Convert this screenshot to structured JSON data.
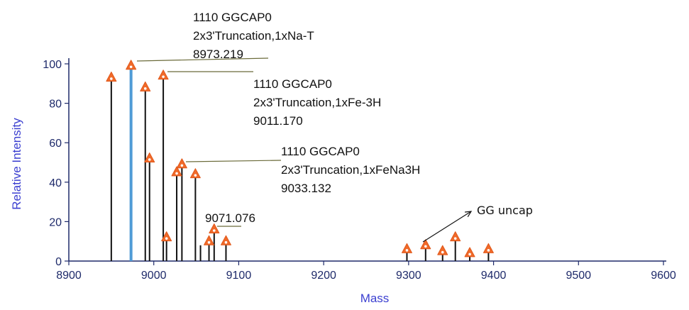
{
  "chart_data": {
    "type": "bar",
    "title": "",
    "xlabel": "Mass",
    "ylabel": "Relative Intensity",
    "xlim": [
      8900,
      9600
    ],
    "ylim": [
      0,
      100
    ],
    "x_ticks": [
      "8900",
      "9000",
      "9100",
      "9200",
      "9300",
      "9400",
      "9500",
      "9600"
    ],
    "y_ticks": [
      "0",
      "20",
      "40",
      "60",
      "80",
      "100"
    ],
    "peaks": [
      {
        "mass": 8950,
        "intensity": 93,
        "marker": true
      },
      {
        "mass": 8973.219,
        "intensity": 99,
        "marker": true,
        "highlight": true
      },
      {
        "mass": 8990,
        "intensity": 88,
        "marker": true
      },
      {
        "mass": 8995,
        "intensity": 52,
        "marker": true
      },
      {
        "mass": 9011.17,
        "intensity": 94,
        "marker": true
      },
      {
        "mass": 9015,
        "intensity": 12,
        "marker": true
      },
      {
        "mass": 9027,
        "intensity": 45,
        "marker": true
      },
      {
        "mass": 9033.132,
        "intensity": 49,
        "marker": true
      },
      {
        "mass": 9049,
        "intensity": 44,
        "marker": true
      },
      {
        "mass": 9055,
        "intensity": 8,
        "marker": false
      },
      {
        "mass": 9065,
        "intensity": 10,
        "marker": true
      },
      {
        "mass": 9071.076,
        "intensity": 16,
        "marker": true
      },
      {
        "mass": 9085,
        "intensity": 10,
        "marker": true
      },
      {
        "mass": 9298,
        "intensity": 6,
        "marker": true
      },
      {
        "mass": 9320,
        "intensity": 8,
        "marker": true
      },
      {
        "mass": 9340,
        "intensity": 5,
        "marker": true
      },
      {
        "mass": 9355,
        "intensity": 12,
        "marker": true
      },
      {
        "mass": 9372,
        "intensity": 4,
        "marker": true
      },
      {
        "mass": 9394,
        "intensity": 6,
        "marker": true
      }
    ],
    "annotations": [
      {
        "lines": [
          "1110 GGCAP0",
          "2x3'Truncation,1xNa-T",
          "8973.219"
        ],
        "peak_mass": 8973.219,
        "peak_intensity": 99
      },
      {
        "lines": [
          "1110 GGCAP0",
          "2x3'Truncation,1xFe-3H",
          "9011.170"
        ],
        "peak_mass": 9011.17,
        "peak_intensity": 94
      },
      {
        "lines": [
          "1110 GGCAP0",
          "2x3'Truncation,1xFeNa3H",
          "9033.132"
        ],
        "peak_mass": 9033.132,
        "peak_intensity": 49
      },
      {
        "lines": [
          "9071.076"
        ],
        "peak_mass": 9071.076,
        "peak_intensity": 16
      },
      {
        "lines": [
          "GG uncap"
        ],
        "peak_mass": 9320,
        "peak_intensity": 8,
        "arrow": true
      }
    ],
    "colors": {
      "peak": "#111111",
      "highlight_peak": "#4f9bd6",
      "marker_fill": "#f06a2a",
      "marker_dot": "#ffffff",
      "axis": "#1e2a6a",
      "axis_title": "#3b3fd0",
      "leader": "#6b6b3a"
    }
  }
}
